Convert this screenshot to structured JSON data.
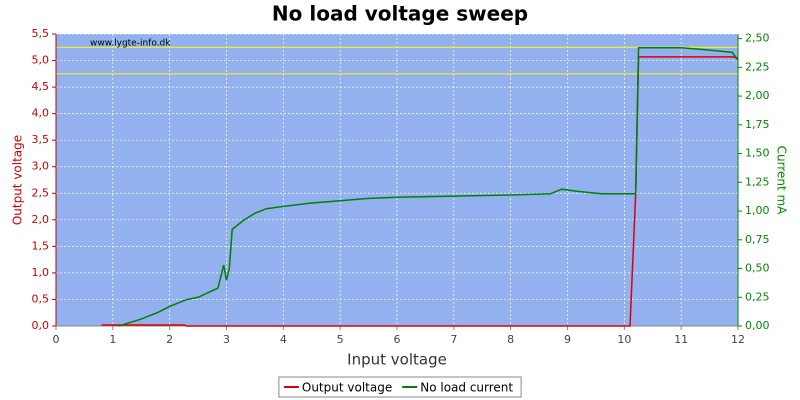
{
  "chart_data": {
    "type": "line",
    "title": "No load voltage sweep",
    "watermark": "www.lygte-info.dk",
    "xlabel": "Input voltage",
    "ylabel": "Output voltage",
    "y2label": "Current mA",
    "x": [
      0.8,
      1.1,
      1.3,
      1.5,
      1.8,
      2.0,
      2.25,
      2.3,
      2.5,
      2.85,
      2.95,
      3.0,
      3.05,
      3.1,
      3.3,
      3.5,
      3.7,
      4.0,
      4.5,
      5.0,
      5.5,
      6.0,
      7.0,
      8.0,
      8.7,
      8.9,
      9.2,
      9.6,
      10.1,
      10.2,
      10.25,
      11.0,
      11.5,
      11.9,
      12.0
    ],
    "series": [
      {
        "name": "Output voltage",
        "color": "#e00000",
        "values": [
          0.02,
          0.02,
          0.02,
          0.02,
          0.02,
          0.02,
          0.02,
          0,
          0,
          0,
          0,
          0,
          0,
          0,
          0,
          0,
          0,
          0,
          0,
          0,
          0,
          0,
          0,
          0,
          0,
          0,
          0,
          0,
          0,
          2.5,
          5.07,
          5.07,
          5.07,
          5.07,
          5.05
        ]
      },
      {
        "name": "No load current",
        "color": "#008000",
        "axis": "y2",
        "values": [
          null,
          0,
          0.03,
          0.06,
          0.12,
          0.17,
          0.22,
          0.23,
          0.25,
          0.33,
          0.53,
          0.4,
          0.5,
          0.84,
          0.92,
          0.98,
          1.02,
          1.04,
          1.07,
          1.09,
          1.11,
          1.12,
          1.13,
          1.14,
          1.15,
          1.19,
          1.17,
          1.15,
          1.15,
          1.15,
          2.42,
          2.42,
          2.4,
          2.38,
          2.31
        ]
      }
    ],
    "reference_lines": {
      "color": "#ffff00",
      "values": [
        4.75,
        5.25
      ]
    },
    "xlim": [
      0,
      12
    ],
    "xticks": [
      0,
      1,
      2,
      3,
      4,
      5,
      6,
      7,
      8,
      9,
      10,
      11,
      12
    ],
    "ylim": [
      0,
      5.5
    ],
    "yticks": [
      {
        "value": 0,
        "label": "0,0"
      },
      {
        "value": 0.5,
        "label": "0,5"
      },
      {
        "value": 1,
        "label": "1,0"
      },
      {
        "value": 1.5,
        "label": "1,5"
      },
      {
        "value": 2,
        "label": "2,0"
      },
      {
        "value": 2.5,
        "label": "2,5"
      },
      {
        "value": 3,
        "label": "3,0"
      },
      {
        "value": 3.5,
        "label": "3,5"
      },
      {
        "value": 4,
        "label": "4,0"
      },
      {
        "value": 4.5,
        "label": "4,5"
      },
      {
        "value": 5,
        "label": "5,0"
      },
      {
        "value": 5.5,
        "label": "5,5"
      }
    ],
    "y2lim": [
      0,
      2.54
    ],
    "y2ticks": [
      {
        "value": 0,
        "label": "0,00"
      },
      {
        "value": 0.25,
        "label": "0,25"
      },
      {
        "value": 0.5,
        "label": "0,50"
      },
      {
        "value": 0.75,
        "label": "0,75"
      },
      {
        "value": 1,
        "label": "1,00"
      },
      {
        "value": 1.25,
        "label": "1,25"
      },
      {
        "value": 1.5,
        "label": "1,50"
      },
      {
        "value": 1.75,
        "label": "1,75"
      },
      {
        "value": 2,
        "label": "2,00"
      },
      {
        "value": 2.25,
        "label": "2,25"
      },
      {
        "value": 2.5,
        "label": "2,50"
      }
    ],
    "grid": true,
    "plot_background": "#93b1ef",
    "legend": "bottom"
  }
}
